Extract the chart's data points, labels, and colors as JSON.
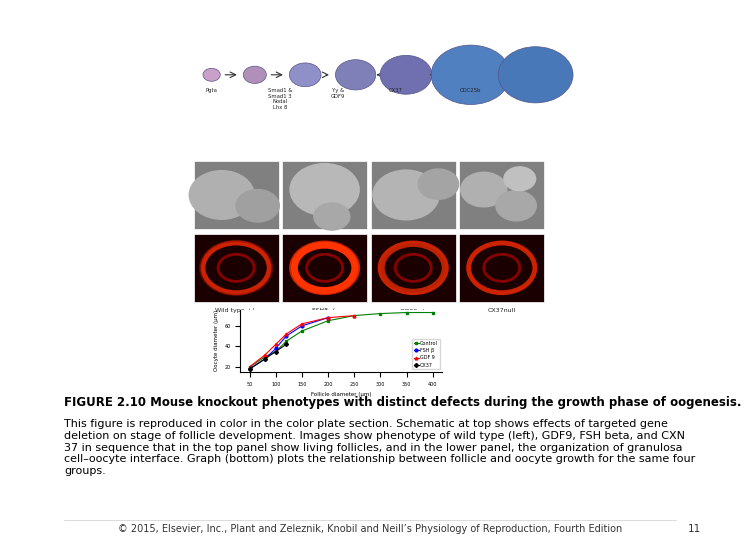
{
  "bg_color": "#ffffff",
  "title_bold": "FIGURE 2.10 Mouse knockout phenotypes with distinct defects during the growth phase of oogenesis.",
  "title_normal": "This figure is reproduced in color in the color plate section. Schematic at top shows effects of targeted gene\ndeletion on stage of follicle development. Images show phenotype of wild type (left), GDF9, FSH beta, and CXN\n37 in sequence that in the top panel show living follicles, and in the lower panel, the organization of granulosa\ncell–oocyte interface. Graph (bottom) plots the relationship between follicle and oocyte growth for the same four\ngroups.",
  "footer_text": "© 2015, Elsevier, Inc., Plant and Zeleznik, Knobil and Neill’s Physiology of Reproduction, Fourth Edition",
  "page_number": "11",
  "font_size_title": 8.5,
  "font_size_body": 8.0,
  "font_size_footer": 7.0
}
